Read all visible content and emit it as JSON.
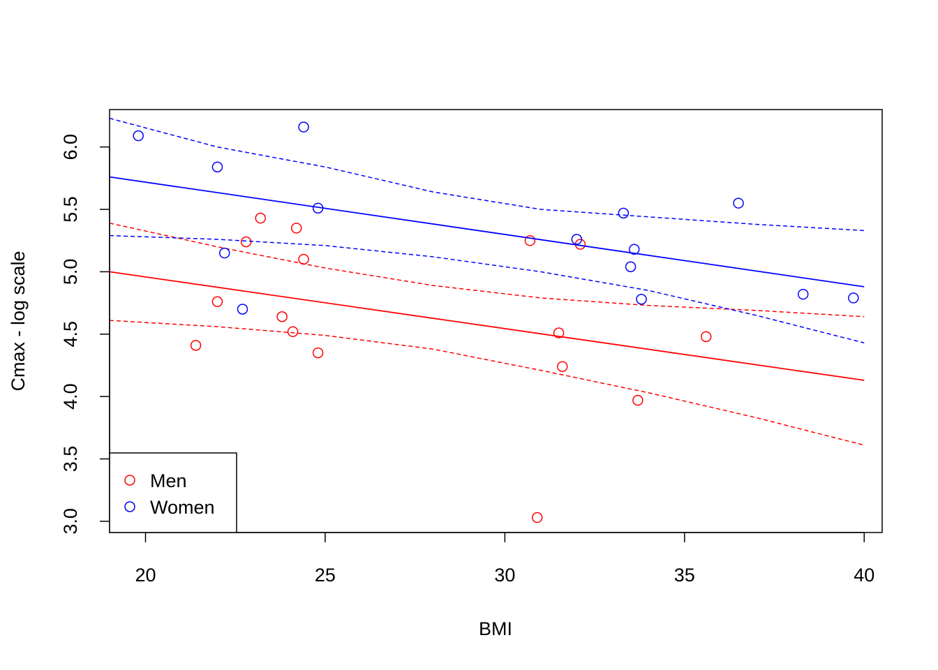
{
  "chart_data": {
    "type": "scatter",
    "title": "",
    "xlabel": "BMI",
    "ylabel": "Cmax - log scale",
    "xlim": [
      19,
      40.5
    ],
    "ylim": [
      2.91,
      6.3
    ],
    "x_ticks": [
      "20",
      "25",
      "30",
      "35",
      "40"
    ],
    "y_ticks": [
      "3.0",
      "3.5",
      "4.0",
      "4.5",
      "5.0",
      "5.5",
      "6.0"
    ],
    "grid": false,
    "legend": {
      "position": "bottom-left",
      "entries": [
        {
          "label": "Men",
          "color": "#ff0000"
        },
        {
          "label": "Women",
          "color": "#0000ff"
        }
      ]
    },
    "series": [
      {
        "name": "Men",
        "color": "#ff0000",
        "marker": "open-circle",
        "points": [
          [
            21.4,
            4.41
          ],
          [
            22.0,
            4.76
          ],
          [
            22.8,
            5.24
          ],
          [
            23.2,
            5.43
          ],
          [
            23.8,
            4.64
          ],
          [
            24.1,
            4.52
          ],
          [
            24.2,
            5.35
          ],
          [
            24.4,
            5.1
          ],
          [
            24.8,
            4.35
          ],
          [
            30.7,
            5.25
          ],
          [
            30.9,
            3.03
          ],
          [
            31.5,
            4.51
          ],
          [
            31.6,
            4.24
          ],
          [
            32.1,
            5.22
          ],
          [
            33.7,
            3.97
          ],
          [
            35.6,
            4.48
          ]
        ],
        "fit": {
          "x": [
            19,
            40
          ],
          "y": [
            5.0,
            4.13
          ]
        },
        "band_upper": {
          "x": [
            19,
            22,
            25,
            28,
            31,
            34,
            37,
            40
          ],
          "y": [
            5.39,
            5.2,
            5.03,
            4.89,
            4.79,
            4.73,
            4.69,
            4.64
          ]
        },
        "band_lower": {
          "x": [
            19,
            22,
            25,
            28,
            31,
            34,
            37,
            40
          ],
          "y": [
            4.61,
            4.56,
            4.49,
            4.38,
            4.21,
            4.03,
            3.83,
            3.61
          ]
        }
      },
      {
        "name": "Women",
        "color": "#0000ff",
        "marker": "open-circle",
        "points": [
          [
            19.8,
            6.09
          ],
          [
            22.0,
            5.84
          ],
          [
            22.2,
            5.15
          ],
          [
            22.7,
            4.7
          ],
          [
            24.4,
            6.16
          ],
          [
            24.8,
            5.51
          ],
          [
            32.0,
            5.26
          ],
          [
            33.3,
            5.47
          ],
          [
            33.5,
            5.04
          ],
          [
            33.6,
            5.18
          ],
          [
            33.8,
            4.78
          ],
          [
            36.5,
            5.55
          ],
          [
            38.3,
            4.82
          ],
          [
            39.7,
            4.79
          ]
        ],
        "fit": {
          "x": [
            19,
            40
          ],
          "y": [
            5.76,
            4.88
          ]
        },
        "band_upper": {
          "x": [
            19,
            22,
            25,
            28,
            31,
            34,
            37,
            40
          ],
          "y": [
            6.23,
            6.0,
            5.84,
            5.64,
            5.5,
            5.44,
            5.38,
            5.33
          ]
        },
        "band_lower": {
          "x": [
            19,
            22,
            25,
            28,
            31,
            34,
            37,
            40
          ],
          "y": [
            5.29,
            5.26,
            5.21,
            5.12,
            5.0,
            4.85,
            4.65,
            4.43
          ]
        }
      }
    ]
  }
}
